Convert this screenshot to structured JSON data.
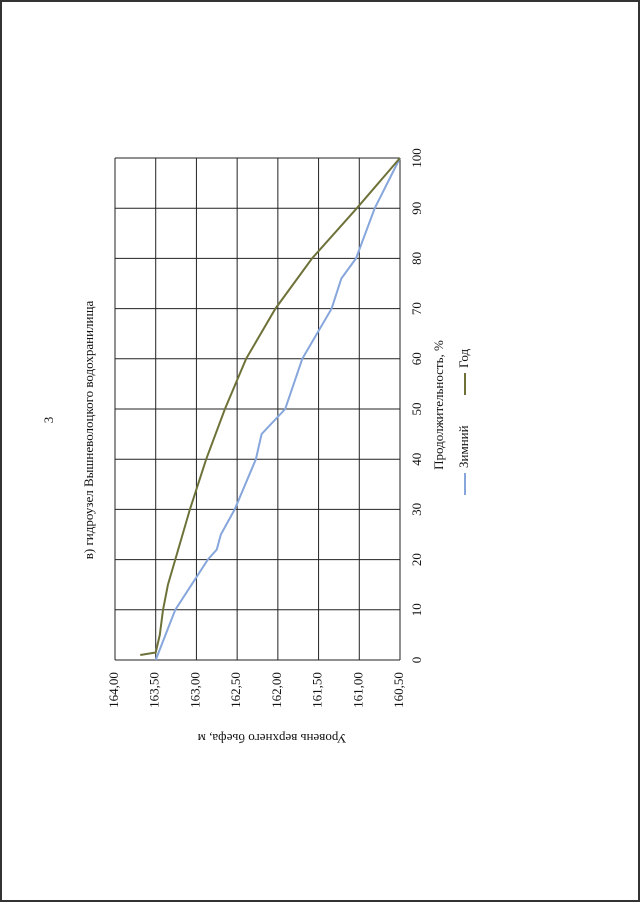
{
  "page_number": "3",
  "chart_data": {
    "type": "line",
    "title": "в) гидроузел Вышневолоцкого водохранилища",
    "x_label": "Продолжительность, %",
    "y_label": "Уровень верхнего бьефа, м",
    "xlim": [
      0,
      100
    ],
    "xticks": [
      0,
      10,
      20,
      30,
      40,
      50,
      60,
      70,
      80,
      90,
      100
    ],
    "ylim": [
      164.0,
      160.5
    ],
    "yticks": [
      {
        "value": 164.0,
        "label": "164,00"
      },
      {
        "value": 163.5,
        "label": "163,50"
      },
      {
        "value": 163.0,
        "label": "163,00"
      },
      {
        "value": 162.5,
        "label": "162,50"
      },
      {
        "value": 162.0,
        "label": "162,00"
      },
      {
        "value": 161.5,
        "label": "161,50"
      },
      {
        "value": 161.0,
        "label": "161,00"
      },
      {
        "value": 160.5,
        "label": "160,50"
      }
    ],
    "grid": true,
    "series": [
      {
        "name": "Зимний",
        "color": "#86a6dc",
        "x": [
          0,
          10,
          20,
          22,
          25,
          30,
          40,
          45,
          50,
          60,
          70,
          76,
          80,
          90,
          100
        ],
        "values": [
          163.5,
          163.26,
          162.86,
          162.75,
          162.7,
          162.53,
          162.27,
          162.2,
          161.91,
          161.7,
          161.34,
          161.22,
          161.04,
          160.81,
          160.5
        ]
      },
      {
        "name": "Год",
        "color": "#6e7239",
        "x": [
          1,
          1.5,
          5,
          10,
          15,
          20,
          30,
          40,
          50,
          60,
          70,
          80,
          90,
          100
        ],
        "values": [
          163.69,
          163.5,
          163.45,
          163.41,
          163.35,
          163.26,
          163.08,
          162.88,
          162.65,
          162.39,
          162.03,
          161.58,
          161.03,
          160.5
        ]
      }
    ]
  }
}
